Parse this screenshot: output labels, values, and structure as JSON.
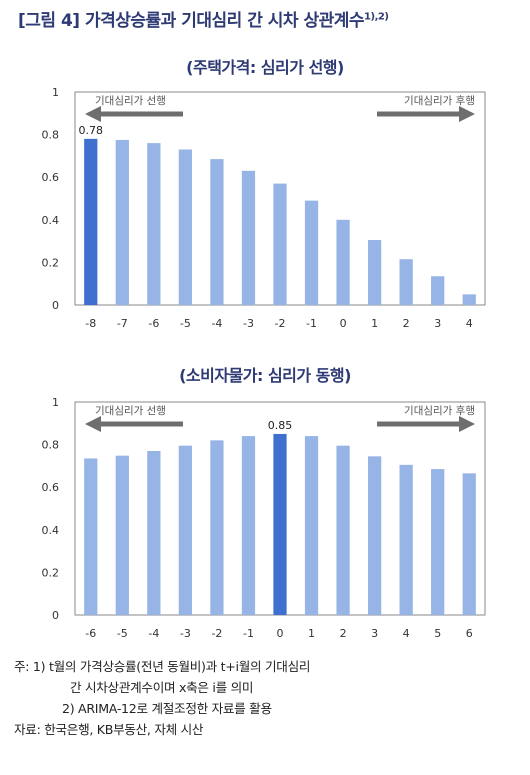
{
  "figure": {
    "title": "[그림 4] 가격상승률과 기대심리 간 시차 상관계수",
    "title_sup": "1),2)"
  },
  "colors": {
    "bar": "#96b4e6",
    "highlight": "#3f6fcf",
    "title": "#2e3a74",
    "arrow": "#6e6e6e"
  },
  "chart_data": [
    {
      "type": "bar",
      "title": "(주택가격: 심리가 선행)",
      "categories": [
        "-8",
        "-7",
        "-6",
        "-5",
        "-4",
        "-3",
        "-2",
        "-1",
        "0",
        "1",
        "2",
        "3",
        "4"
      ],
      "values": [
        0.78,
        0.775,
        0.76,
        0.73,
        0.685,
        0.63,
        0.57,
        0.49,
        0.4,
        0.305,
        0.215,
        0.135,
        0.05
      ],
      "highlight_index": 0,
      "data_label": "0.78",
      "ylim": [
        0,
        1
      ],
      "yticks": [
        "0",
        "0.2",
        "0.4",
        "0.6",
        "0.8",
        "1"
      ],
      "left_arrow": "기대심리가 선행",
      "right_arrow": "기대심리가 후행",
      "grid": false
    },
    {
      "type": "bar",
      "title": "(소비자물가: 심리가 동행)",
      "categories": [
        "-6",
        "-5",
        "-4",
        "-3",
        "-2",
        "-1",
        "0",
        "1",
        "2",
        "3",
        "4",
        "5",
        "6"
      ],
      "values": [
        0.735,
        0.748,
        0.77,
        0.795,
        0.82,
        0.84,
        0.85,
        0.84,
        0.795,
        0.745,
        0.705,
        0.685,
        0.665
      ],
      "highlight_index": 6,
      "data_label": "0.85",
      "ylim": [
        0,
        1
      ],
      "yticks": [
        "0",
        "0.2",
        "0.4",
        "0.6",
        "0.8",
        "1"
      ],
      "left_arrow": "기대심리가 선행",
      "right_arrow": "기대심리가 후행",
      "grid": false
    }
  ],
  "notes": {
    "line1": "주: 1) t월의 가격상승률(전년 동월비)과 t+i월의 기대심리",
    "line2": "간 시차상관계수이며 x축은 i를 의미",
    "line3": "2) ARIMA-12로 계절조정한 자료를 활용",
    "source": "자료: 한국은행, KB부동산, 자체 시산"
  }
}
